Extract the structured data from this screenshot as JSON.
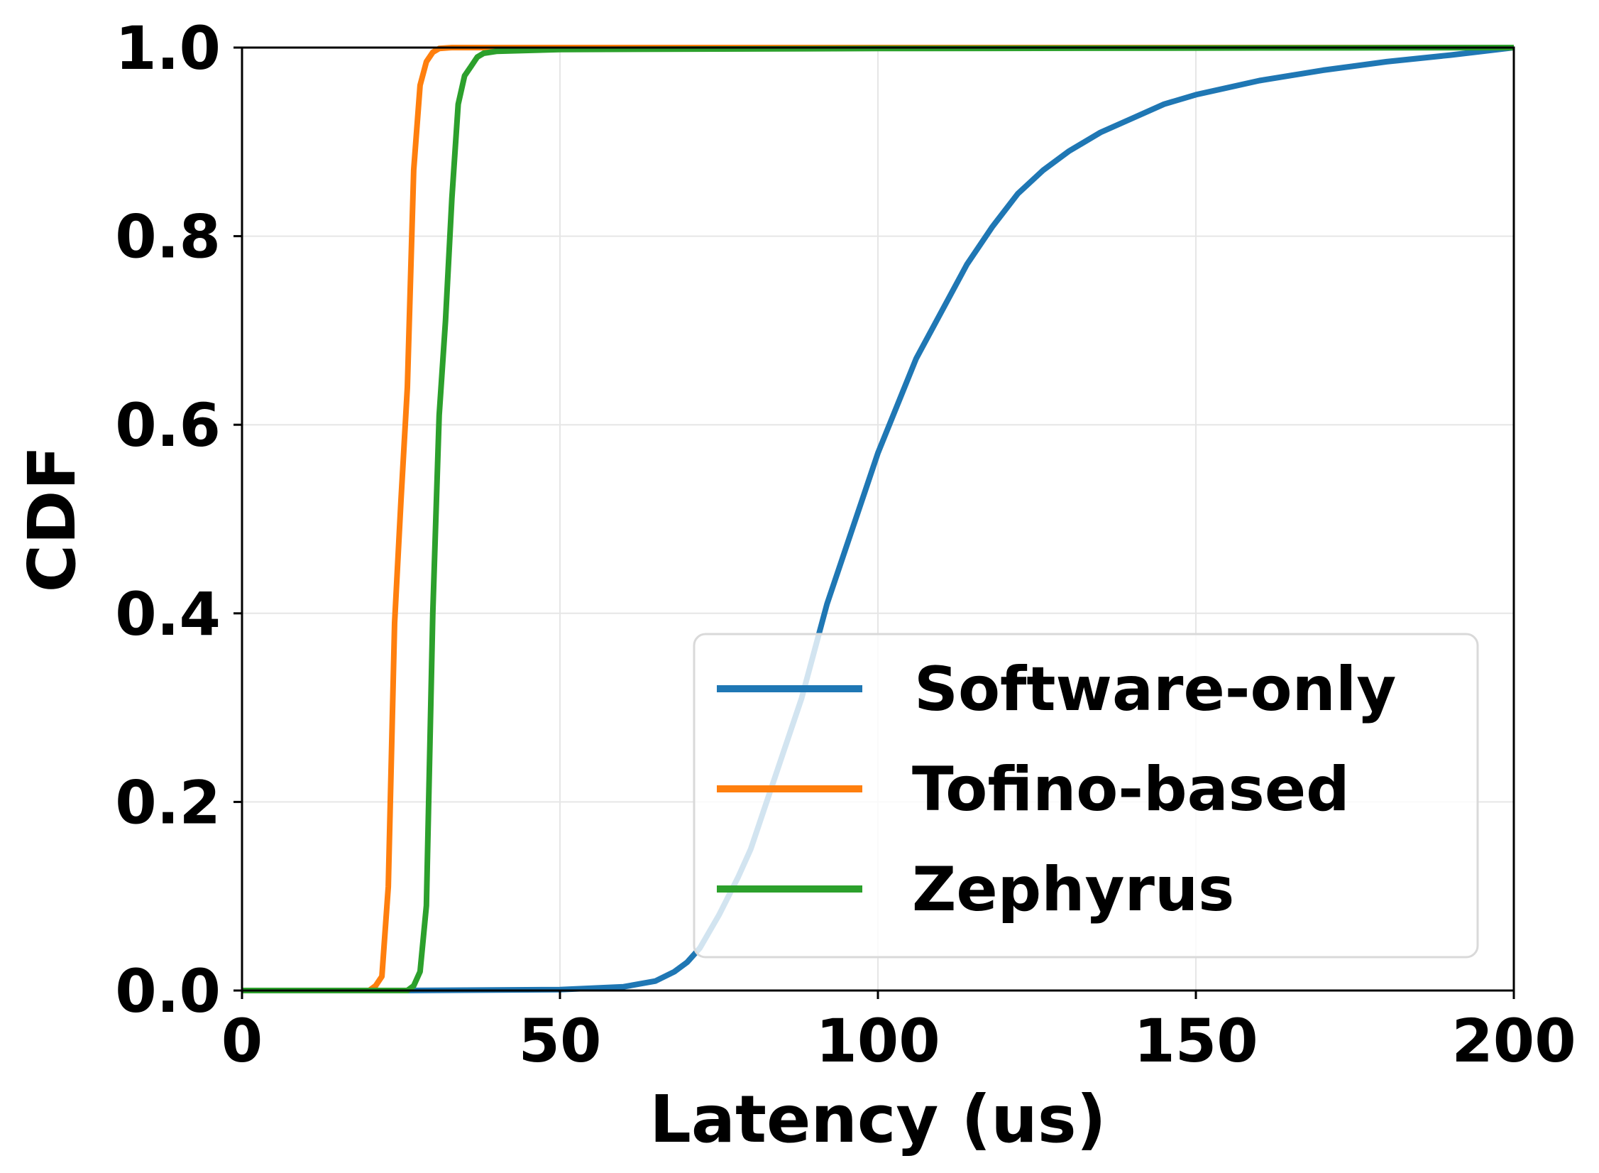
{
  "chart_data": {
    "type": "line",
    "title": "",
    "xlabel": "Latency (us)",
    "ylabel": "CDF",
    "xlim": [
      0,
      200
    ],
    "ylim": [
      0.0,
      1.0
    ],
    "xticks": [
      "0",
      "50",
      "100",
      "150",
      "200"
    ],
    "yticks": [
      "0.0",
      "0.2",
      "0.4",
      "0.6",
      "0.8",
      "1.0"
    ],
    "grid": true,
    "legend_position": "lower-right",
    "series": [
      {
        "name": "Software-only",
        "color": "#1f77b4",
        "x": [
          0,
          26,
          50,
          60,
          65,
          68,
          70,
          72,
          75,
          78,
          80,
          82,
          85,
          88,
          90,
          92,
          95,
          98,
          100,
          103,
          106,
          110,
          114,
          118,
          122,
          126,
          130,
          135,
          140,
          145,
          150,
          160,
          170,
          180,
          190,
          200
        ],
        "y": [
          0.0,
          0.0,
          0.001,
          0.004,
          0.01,
          0.02,
          0.03,
          0.045,
          0.08,
          0.12,
          0.15,
          0.19,
          0.25,
          0.31,
          0.36,
          0.41,
          0.47,
          0.53,
          0.57,
          0.62,
          0.67,
          0.72,
          0.77,
          0.81,
          0.845,
          0.87,
          0.89,
          0.91,
          0.925,
          0.94,
          0.95,
          0.965,
          0.976,
          0.985,
          0.992,
          1.0
        ]
      },
      {
        "name": "Tofino-based",
        "color": "#ff7f0e",
        "x": [
          0,
          20,
          21,
          22,
          23,
          24,
          25,
          26,
          27,
          28,
          29,
          30,
          31,
          33,
          35,
          40,
          200
        ],
        "y": [
          0.0,
          0.0,
          0.005,
          0.015,
          0.11,
          0.39,
          0.52,
          0.64,
          0.87,
          0.96,
          0.985,
          0.995,
          0.999,
          1.0,
          1.0,
          1.0,
          1.0
        ]
      },
      {
        "name": "Zephyrus",
        "color": "#2ca02c",
        "x": [
          0,
          26,
          27,
          28,
          29,
          30,
          31,
          32,
          33,
          34,
          35,
          36,
          37,
          38,
          40,
          45,
          50,
          100,
          200
        ],
        "y": [
          0.0,
          0.0,
          0.005,
          0.02,
          0.09,
          0.4,
          0.61,
          0.71,
          0.84,
          0.94,
          0.97,
          0.98,
          0.99,
          0.994,
          0.996,
          0.997,
          0.998,
          0.999,
          1.0
        ]
      }
    ]
  }
}
